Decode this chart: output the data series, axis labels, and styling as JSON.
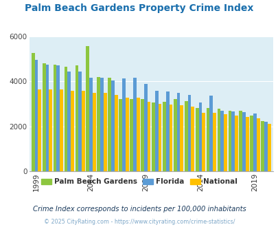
{
  "title": "Palm Beach Gardens Property Crime Index",
  "title_color": "#1a6fad",
  "subtitle": "Crime Index corresponds to incidents per 100,000 inhabitants",
  "footer": "© 2025 CityRating.com - https://www.cityrating.com/crime-statistics/",
  "years": [
    1999,
    2000,
    2001,
    2002,
    2003,
    2004,
    2005,
    2006,
    2007,
    2008,
    2009,
    2010,
    2011,
    2012,
    2013,
    2014,
    2015,
    2016,
    2017,
    2018,
    2019,
    2020
  ],
  "pbg": [
    5250,
    4800,
    4730,
    4650,
    4700,
    5560,
    4180,
    4170,
    3200,
    3200,
    3220,
    3060,
    3080,
    3200,
    3130,
    2820,
    2820,
    2790,
    2690,
    2680,
    2490,
    2240
  ],
  "florida": [
    4950,
    4750,
    4700,
    4450,
    4430,
    4150,
    4160,
    4030,
    4120,
    4160,
    3900,
    3570,
    3550,
    3490,
    3390,
    3060,
    3380,
    2700,
    2660,
    2620,
    2570,
    2200
  ],
  "national": [
    3640,
    3640,
    3630,
    3580,
    3570,
    3490,
    3480,
    3410,
    3280,
    3260,
    3090,
    3000,
    2970,
    2950,
    2890,
    2610,
    2600,
    2540,
    2480,
    2430,
    2350,
    2100
  ],
  "pbg_color": "#8dc63f",
  "florida_color": "#5b9bd5",
  "national_color": "#ffc000",
  "plot_bg": "#ddeef5",
  "ylim": [
    0,
    6000
  ],
  "yticks": [
    0,
    2000,
    4000,
    6000
  ],
  "legend_labels": [
    "Palm Beach Gardens",
    "Florida",
    "National"
  ],
  "legend_colors": [
    "#8dc63f",
    "#5b9bd5",
    "#ffc000"
  ],
  "subtitle_color": "#1a3a5c",
  "footer_color": "#7fa8c9",
  "tick_label_years": [
    1999,
    2004,
    2009,
    2014,
    2019
  ]
}
